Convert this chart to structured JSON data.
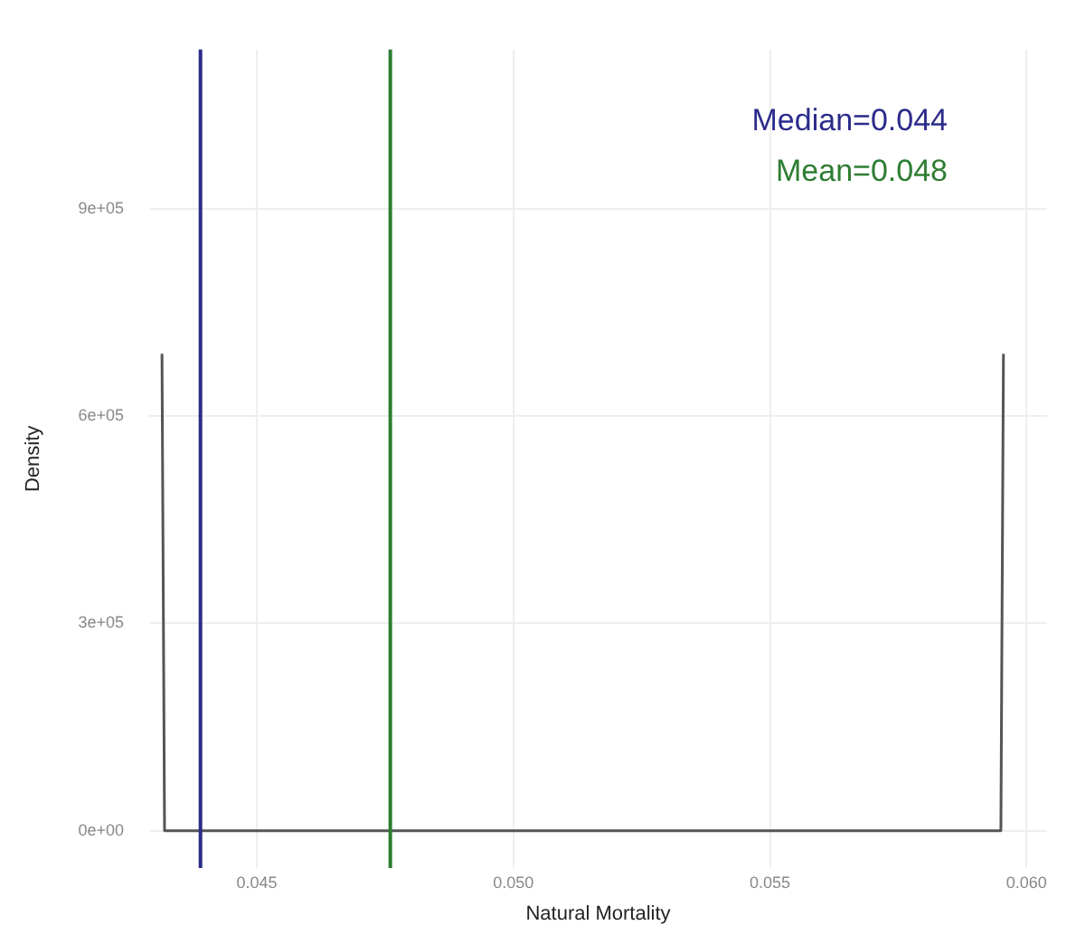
{
  "chart_data": {
    "type": "line",
    "xlabel": "Natural Mortality",
    "ylabel": "Density",
    "x": [
      0.04315,
      0.0432,
      0.0595,
      0.05955
    ],
    "series": [
      {
        "color": "#555555",
        "values": [
          690000,
          0,
          0,
          690000
        ]
      }
    ],
    "xlim": [
      0.0429,
      0.0604
    ],
    "ylim": [
      -54000,
      1130000
    ],
    "xticks": [
      {
        "value": 0.045,
        "label": "0.045"
      },
      {
        "value": 0.05,
        "label": "0.050"
      },
      {
        "value": 0.055,
        "label": "0.055"
      },
      {
        "value": 0.06,
        "label": "0.060"
      }
    ],
    "yticks": [
      {
        "value": 0,
        "label": "0e+00"
      },
      {
        "value": 300000,
        "label": "3e+05"
      },
      {
        "value": 600000,
        "label": "6e+05"
      },
      {
        "value": 900000,
        "label": "9e+05"
      }
    ],
    "ref_lines": [
      {
        "axis": "x",
        "value": 0.0439,
        "label": "Median=0.044",
        "color": "#2b2b8c"
      },
      {
        "axis": "x",
        "value": 0.0476,
        "label": "Mean=0.048",
        "color": "#2e7d32"
      }
    ],
    "grid": true,
    "legend": false,
    "marker": "none",
    "line_style": "solid"
  }
}
